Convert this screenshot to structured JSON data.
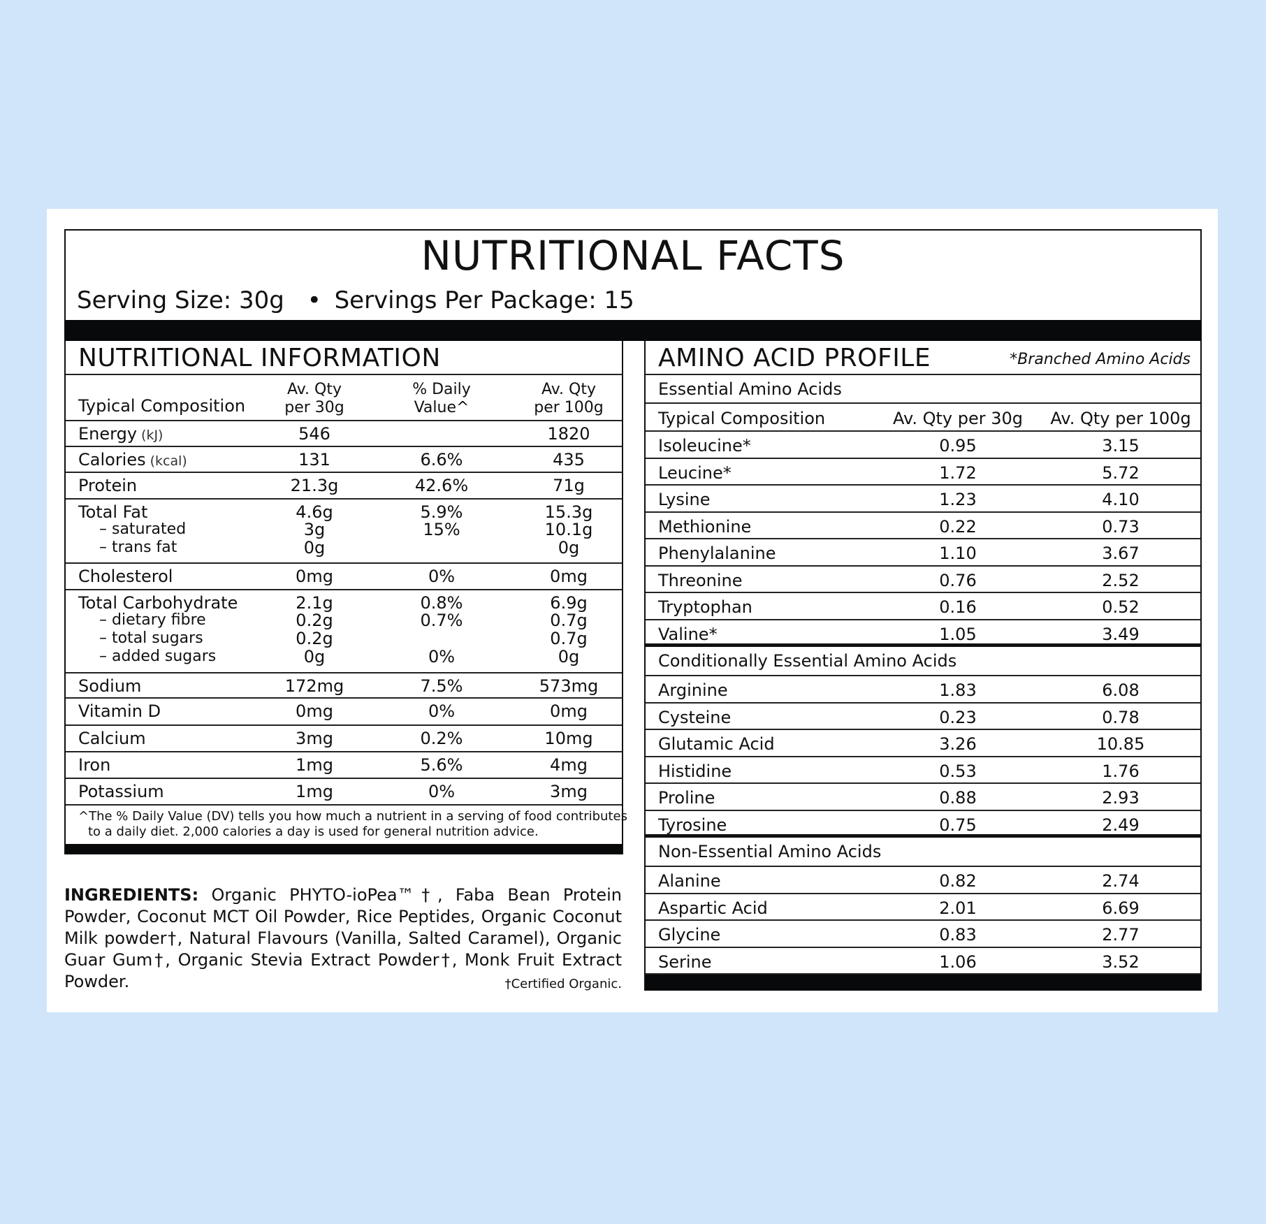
{
  "header": {
    "title": "NUTRITIONAL FACTS",
    "serving_size": "Serving Size: 30g",
    "bullet": "•",
    "servings_per_package": "Servings Per Package: 15"
  },
  "nutrition": {
    "title": "NUTRITIONAL INFORMATION",
    "columns": {
      "composition": "Typical Composition",
      "per30_line1": "Av. Qty",
      "per30_line2": "per 30g",
      "dv_line1": "% Daily",
      "dv_line2": "Value^",
      "per100_line1": "Av. Qty",
      "per100_line2": "per 100g"
    },
    "rows": [
      {
        "label": "Energy",
        "unit": "(kJ)",
        "per30": "546",
        "dv": "",
        "per100": "1820"
      },
      {
        "label": "Calories",
        "unit": "(kcal)",
        "per30": "131",
        "dv": "6.6%",
        "per100": "435"
      },
      {
        "label": "Protein",
        "unit": "",
        "per30": "21.3g",
        "dv": "42.6%",
        "per100": "71g"
      },
      {
        "label": "Total Fat",
        "unit": "",
        "per30": "4.6g",
        "dv": "5.9%",
        "per100": "15.3g",
        "subs": [
          {
            "label": "– saturated",
            "per30": "3g",
            "dv": "15%",
            "per100": "10.1g"
          },
          {
            "label": "– trans fat",
            "per30": "0g",
            "dv": "",
            "per100": "0g"
          }
        ]
      },
      {
        "label": "Cholesterol",
        "unit": "",
        "per30": "0mg",
        "dv": "0%",
        "per100": "0mg"
      },
      {
        "label": "Total Carbohydrate",
        "unit": "",
        "per30": "2.1g",
        "dv": "0.8%",
        "per100": "6.9g",
        "subs": [
          {
            "label": "– dietary fibre",
            "per30": "0.2g",
            "dv": "0.7%",
            "per100": "0.7g"
          },
          {
            "label": "– total sugars",
            "per30": "0.2g",
            "dv": "",
            "per100": "0.7g"
          },
          {
            "label": "– added sugars",
            "per30": "0g",
            "dv": "0%",
            "per100": "0g"
          }
        ]
      },
      {
        "label": "Sodium",
        "unit": "",
        "per30": "172mg",
        "dv": "7.5%",
        "per100": "573mg"
      },
      {
        "label": "Vitamin D",
        "unit": "",
        "per30": "0mg",
        "dv": "0%",
        "per100": "0mg"
      },
      {
        "label": "Calcium",
        "unit": "",
        "per30": "3mg",
        "dv": "0.2%",
        "per100": "10mg"
      },
      {
        "label": "Iron",
        "unit": "",
        "per30": "1mg",
        "dv": "5.6%",
        "per100": "4mg"
      },
      {
        "label": "Potassium",
        "unit": "",
        "per30": "1mg",
        "dv": "0%",
        "per100": "3mg"
      }
    ],
    "footnote_line1": "^The % Daily Value (DV) tells you how much a nutrient in a serving of food contributes",
    "footnote_line2": "to a daily diet. 2,000 calories a day is used for general nutrition advice."
  },
  "ingredients": {
    "label": "INGREDIENTS:",
    "text": "Organic PHYTO-ioPea™†, Faba Bean Protein Powder, Coconut MCT Oil Powder, Rice Peptides, Organic Coconut Milk powder†, Natural Flavours (Vanilla, Salted Caramel), Organic Guar Gum†, Organic Stevia Extract Powder†, Monk Fruit Extract Powder.",
    "certified_note": "†Certified Organic."
  },
  "amino": {
    "title": "AMINO ACID PROFILE",
    "note": "*Branched Amino Acids",
    "columns": {
      "composition": "Typical Composition",
      "per30": "Av. Qty per 30g",
      "per100": "Av. Qty per 100g"
    },
    "essential": {
      "label": "Essential Amino Acids",
      "rows": [
        {
          "name": "Isoleucine*",
          "per30": "0.95",
          "per100": "3.15"
        },
        {
          "name": "Leucine*",
          "per30": "1.72",
          "per100": "5.72"
        },
        {
          "name": "Lysine",
          "per30": "1.23",
          "per100": "4.10"
        },
        {
          "name": "Methionine",
          "per30": "0.22",
          "per100": "0.73"
        },
        {
          "name": "Phenylalanine",
          "per30": "1.10",
          "per100": "3.67"
        },
        {
          "name": "Threonine",
          "per30": "0.76",
          "per100": "2.52"
        },
        {
          "name": "Tryptophan",
          "per30": "0.16",
          "per100": "0.52"
        },
        {
          "name": "Valine*",
          "per30": "1.05",
          "per100": "3.49"
        }
      ]
    },
    "conditional": {
      "label": "Conditionally Essential Amino Acids",
      "rows": [
        {
          "name": "Arginine",
          "per30": "1.83",
          "per100": "6.08"
        },
        {
          "name": "Cysteine",
          "per30": "0.23",
          "per100": "0.78"
        },
        {
          "name": "Glutamic Acid",
          "per30": "3.26",
          "per100": "10.85"
        },
        {
          "name": "Histidine",
          "per30": "0.53",
          "per100": "1.76"
        },
        {
          "name": "Proline",
          "per30": "0.88",
          "per100": "2.93"
        },
        {
          "name": "Tyrosine",
          "per30": "0.75",
          "per100": "2.49"
        }
      ]
    },
    "nonessential": {
      "label": "Non-Essential Amino Acids",
      "rows": [
        {
          "name": "Alanine",
          "per30": "0.82",
          "per100": "2.74"
        },
        {
          "name": "Aspartic Acid",
          "per30": "2.01",
          "per100": "6.69"
        },
        {
          "name": "Glycine",
          "per30": "0.83",
          "per100": "2.77"
        },
        {
          "name": "Serine",
          "per30": "1.06",
          "per100": "3.52"
        }
      ]
    }
  }
}
